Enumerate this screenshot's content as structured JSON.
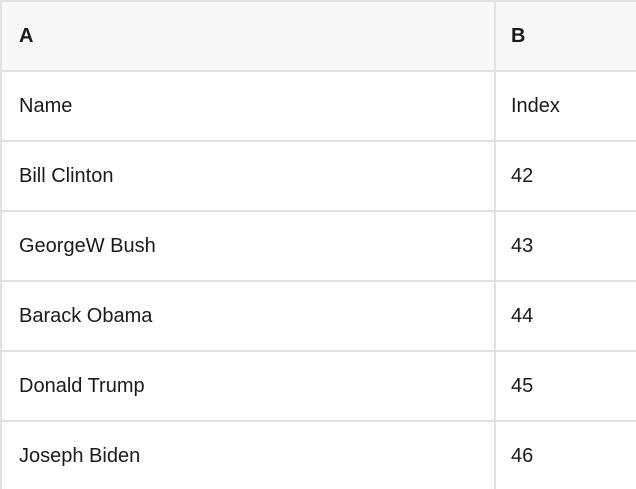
{
  "colors": {
    "header_bg": "#f7f7f7",
    "row_bg": "#ffffff",
    "border": "#e1e1e1",
    "text": "#1a1a1a"
  },
  "table": {
    "column_letters": [
      "A",
      "B"
    ],
    "rows": [
      [
        "Name",
        "Index"
      ],
      [
        "Bill Clinton",
        "42"
      ],
      [
        "GeorgeW Bush",
        "43"
      ],
      [
        "Barack Obama",
        "44"
      ],
      [
        "Donald Trump",
        "45"
      ],
      [
        "Joseph Biden",
        "46"
      ]
    ]
  }
}
